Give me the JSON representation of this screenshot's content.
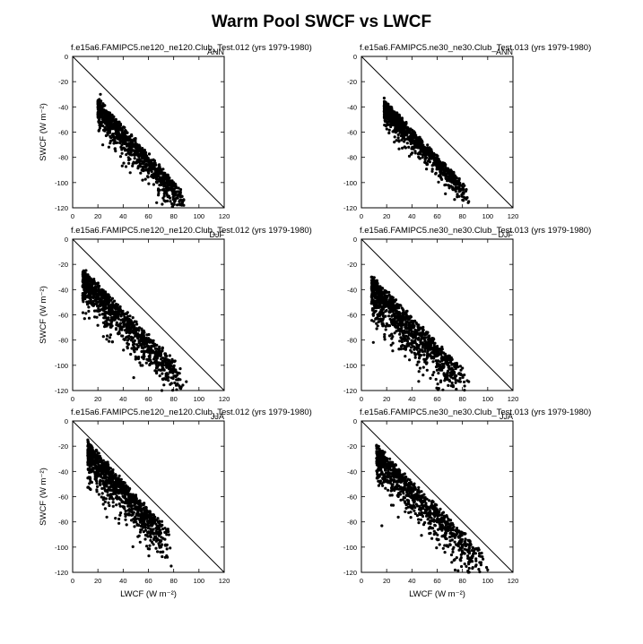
{
  "title": "Warm Pool SWCF vs LWCF",
  "chart_data": [
    {
      "type": "scatter",
      "panel_title": "f.e15a6.FAMIPC5.ne120_ne120.Club_Test.012 (yrs 1979-1980)",
      "season": "ANN",
      "xlabel": "",
      "ylabel": "SWCF (W m⁻²)",
      "xlim": [
        0,
        120
      ],
      "ylim": [
        -120,
        0
      ],
      "xticks": [
        0,
        20,
        40,
        60,
        80,
        100,
        120
      ],
      "yticks": [
        0,
        -20,
        -40,
        -60,
        -80,
        -100,
        -120
      ],
      "reference_line": {
        "x": [
          0,
          120
        ],
        "y": [
          0,
          -120
        ]
      },
      "cluster": {
        "x_range": [
          20,
          90
        ],
        "y_at_xmin": [
          -32,
          -60
        ],
        "slope": -1.1,
        "spread": 9,
        "n": 900
      },
      "points_sample": [
        [
          20,
          -38
        ],
        [
          22,
          -30
        ],
        [
          25,
          -45
        ],
        [
          30,
          -55
        ],
        [
          35,
          -52
        ],
        [
          40,
          -65
        ],
        [
          45,
          -70
        ],
        [
          50,
          -78
        ],
        [
          55,
          -85
        ],
        [
          60,
          -90
        ],
        [
          65,
          -95
        ],
        [
          70,
          -100
        ],
        [
          75,
          -103
        ],
        [
          80,
          -100
        ],
        [
          88,
          -118
        ]
      ]
    },
    {
      "type": "scatter",
      "panel_title": "f.e15a6.FAMIPC5.ne30_ne30.Club_Test.013 (yrs 1979-1980)",
      "season": "ANN",
      "xlabel": "",
      "ylabel": "",
      "xlim": [
        0,
        120
      ],
      "ylim": [
        -120,
        0
      ],
      "xticks": [
        0,
        20,
        40,
        60,
        80,
        100,
        120
      ],
      "yticks": [
        0,
        -20,
        -40,
        -60,
        -80,
        -100,
        -120
      ],
      "reference_line": {
        "x": [
          0,
          120
        ],
        "y": [
          0,
          -120
        ]
      },
      "cluster": {
        "x_range": [
          18,
          85
        ],
        "y_at_xmin": [
          -33,
          -60
        ],
        "slope": -1.05,
        "spread": 7,
        "n": 900
      },
      "points_sample": [
        [
          18,
          -33
        ],
        [
          20,
          -40
        ],
        [
          25,
          -48
        ],
        [
          30,
          -52
        ],
        [
          35,
          -57
        ],
        [
          40,
          -62
        ],
        [
          45,
          -67
        ],
        [
          50,
          -72
        ],
        [
          55,
          -78
        ],
        [
          60,
          -84
        ],
        [
          65,
          -90
        ],
        [
          70,
          -95
        ],
        [
          75,
          -100
        ],
        [
          80,
          -105
        ],
        [
          85,
          -115
        ]
      ]
    },
    {
      "type": "scatter",
      "panel_title": "f.e15a6.FAMIPC5.ne120_ne120.Club_Test.012 (yrs 1979-1980)",
      "season": "DJF",
      "xlabel": "",
      "ylabel": "SWCF (W m⁻²)",
      "xlim": [
        0,
        120
      ],
      "ylim": [
        -120,
        0
      ],
      "xticks": [
        0,
        20,
        40,
        60,
        80,
        100,
        120
      ],
      "yticks": [
        0,
        -20,
        -40,
        -60,
        -80,
        -100,
        -120
      ],
      "reference_line": {
        "x": [
          0,
          120
        ],
        "y": [
          0,
          -120
        ]
      },
      "cluster": {
        "x_range": [
          8,
          90
        ],
        "y_at_xmin": [
          -22,
          -70
        ],
        "slope": -1.0,
        "spread": 12,
        "n": 1000
      },
      "points_sample": [
        [
          8,
          -28
        ],
        [
          10,
          -35
        ],
        [
          15,
          -40
        ],
        [
          20,
          -50
        ],
        [
          25,
          -55
        ],
        [
          30,
          -60
        ],
        [
          35,
          -62
        ],
        [
          40,
          -66
        ],
        [
          45,
          -70
        ],
        [
          50,
          -75
        ],
        [
          55,
          -80
        ],
        [
          60,
          -85
        ],
        [
          65,
          -90
        ],
        [
          70,
          -95
        ],
        [
          75,
          -100
        ],
        [
          90,
          -113
        ]
      ]
    },
    {
      "type": "scatter",
      "panel_title": "f.e15a6.FAMIPC5.ne30_ne30.Club_Test.013 (yrs 1979-1980)",
      "season": "DJF",
      "xlabel": "",
      "ylabel": "",
      "xlim": [
        0,
        120
      ],
      "ylim": [
        -120,
        0
      ],
      "xticks": [
        0,
        20,
        40,
        60,
        80,
        100,
        120
      ],
      "yticks": [
        0,
        -20,
        -40,
        -60,
        -80,
        -100,
        -120
      ],
      "reference_line": {
        "x": [
          0,
          120
        ],
        "y": [
          0,
          -120
        ]
      },
      "cluster": {
        "x_range": [
          8,
          85
        ],
        "y_at_xmin": [
          -28,
          -100
        ],
        "slope": -1.0,
        "spread": 14,
        "n": 1000
      },
      "points_sample": [
        [
          8,
          -30
        ],
        [
          10,
          -38
        ],
        [
          15,
          -45
        ],
        [
          20,
          -50
        ],
        [
          25,
          -55
        ],
        [
          30,
          -58
        ],
        [
          35,
          -62
        ],
        [
          40,
          -65
        ],
        [
          45,
          -70
        ],
        [
          50,
          -75
        ],
        [
          55,
          -80
        ],
        [
          60,
          -85
        ],
        [
          65,
          -90
        ],
        [
          70,
          -95
        ],
        [
          75,
          -100
        ],
        [
          80,
          -108
        ],
        [
          85,
          -113
        ]
      ]
    },
    {
      "type": "scatter",
      "panel_title": "f.e15a6.FAMIPC5.ne120_ne120.Club_Test.012 (yrs 1979-1980)",
      "season": "JJA",
      "xlabel": "LWCF (W m⁻²)",
      "ylabel": "SWCF (W m⁻²)",
      "xlim": [
        0,
        120
      ],
      "ylim": [
        -120,
        0
      ],
      "xticks": [
        0,
        20,
        40,
        60,
        80,
        100,
        120
      ],
      "yticks": [
        0,
        -20,
        -40,
        -60,
        -80,
        -100,
        -120
      ],
      "reference_line": {
        "x": [
          0,
          120
        ],
        "y": [
          0,
          -120
        ]
      },
      "cluster": {
        "x_range": [
          12,
          78
        ],
        "y_at_xmin": [
          -15,
          -70
        ],
        "slope": -1.1,
        "spread": 12,
        "n": 1000
      },
      "points_sample": [
        [
          12,
          -15
        ],
        [
          15,
          -20
        ],
        [
          20,
          -28
        ],
        [
          25,
          -35
        ],
        [
          30,
          -42
        ],
        [
          35,
          -50
        ],
        [
          40,
          -57
        ],
        [
          45,
          -63
        ],
        [
          50,
          -70
        ],
        [
          55,
          -78
        ],
        [
          60,
          -85
        ],
        [
          65,
          -92
        ],
        [
          70,
          -100
        ],
        [
          75,
          -108
        ],
        [
          78,
          -115
        ]
      ]
    },
    {
      "type": "scatter",
      "panel_title": "f.e15a6.FAMIPC5.ne30_ne30.Club_Test.013 (yrs 1979-1980)",
      "season": "JJA",
      "xlabel": "LWCF (W m⁻²)",
      "ylabel": "",
      "xlim": [
        0,
        120
      ],
      "ylim": [
        -120,
        0
      ],
      "xticks": [
        0,
        20,
        40,
        60,
        80,
        100,
        120
      ],
      "yticks": [
        0,
        -20,
        -40,
        -60,
        -80,
        -100,
        -120
      ],
      "reference_line": {
        "x": [
          0,
          120
        ],
        "y": [
          0,
          -120
        ]
      },
      "cluster": {
        "x_range": [
          12,
          100
        ],
        "y_at_xmin": [
          -18,
          -70
        ],
        "slope": -1.0,
        "spread": 12,
        "n": 900
      },
      "points_sample": [
        [
          12,
          -20
        ],
        [
          15,
          -25
        ],
        [
          20,
          -30
        ],
        [
          25,
          -36
        ],
        [
          30,
          -42
        ],
        [
          35,
          -48
        ],
        [
          40,
          -55
        ],
        [
          45,
          -60
        ],
        [
          50,
          -67
        ],
        [
          55,
          -73
        ],
        [
          60,
          -80
        ],
        [
          65,
          -85
        ],
        [
          70,
          -92
        ],
        [
          75,
          -98
        ],
        [
          80,
          -105
        ],
        [
          100,
          -118
        ]
      ]
    }
  ]
}
